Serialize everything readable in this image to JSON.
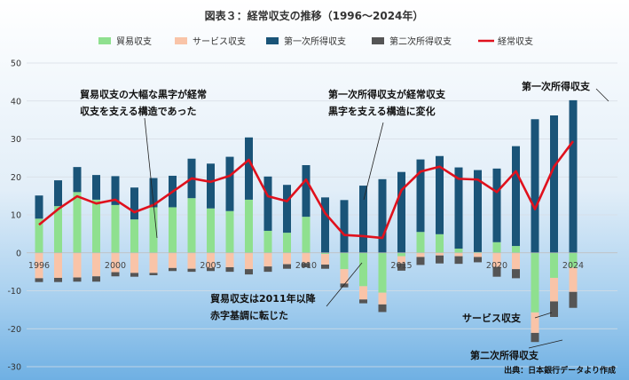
{
  "chart_data": {
    "type": "bar",
    "title": "図表３：経常収支の推移（1996～2024年）",
    "source": "出典：日本銀行データより作成",
    "x": [
      1996,
      1997,
      1998,
      1999,
      2000,
      2001,
      2002,
      2003,
      2004,
      2005,
      2006,
      2007,
      2008,
      2009,
      2010,
      2011,
      2012,
      2013,
      2014,
      2015,
      2016,
      2017,
      2018,
      2019,
      2020,
      2021,
      2022,
      2023,
      2024
    ],
    "x_tick_labels": [
      "1996",
      "2000",
      "2005",
      "2010",
      "2015",
      "2020",
      "2024"
    ],
    "y_ticks": [
      50,
      40,
      30,
      20,
      10,
      0,
      -10,
      -20,
      -30
    ],
    "ylim": [
      -30,
      50
    ],
    "colors": {
      "trade": "#8fe08f",
      "services": "#f9c4a8",
      "primary": "#1a5478",
      "secondary": "#555555",
      "current": "#e0111d"
    },
    "series": [
      {
        "name": "貿易収支",
        "key": "trade",
        "values": [
          9.0,
          12.3,
          16.0,
          14.0,
          12.6,
          8.8,
          12.0,
          12.0,
          14.4,
          11.7,
          11.0,
          14.0,
          5.8,
          5.3,
          9.5,
          -0.3,
          -4.3,
          -8.8,
          -10.5,
          -0.9,
          5.5,
          4.9,
          1.1,
          0.2,
          2.8,
          1.8,
          -15.7,
          -6.6,
          -3.9
        ]
      },
      {
        "name": "サービス収支",
        "key": "services",
        "values": [
          -6.7,
          -6.6,
          -6.5,
          -6.2,
          -5.1,
          -5.3,
          -5.3,
          -4.0,
          -4.2,
          -4.0,
          -3.8,
          -4.3,
          -3.6,
          -3.0,
          -2.7,
          -2.8,
          -3.8,
          -3.5,
          -3.1,
          -1.9,
          -1.1,
          -0.7,
          -0.9,
          -1.1,
          -3.7,
          -4.3,
          -5.4,
          -6.2,
          -6.4
        ]
      },
      {
        "name": "第一次所得収支",
        "key": "primary",
        "values": [
          6.1,
          6.8,
          6.6,
          6.5,
          7.6,
          8.4,
          7.7,
          8.3,
          10.4,
          11.8,
          14.3,
          16.4,
          14.3,
          12.6,
          13.6,
          14.6,
          13.9,
          17.7,
          19.4,
          21.3,
          19.1,
          20.6,
          21.4,
          21.6,
          19.4,
          26.3,
          35.2,
          36.2,
          40.2
        ]
      },
      {
        "name": "第二次所得収支",
        "key": "secondary",
        "values": [
          -1.0,
          -1.1,
          -1.1,
          -1.4,
          -1.1,
          -1.0,
          -0.6,
          -0.8,
          -0.8,
          -0.8,
          -1.2,
          -1.4,
          -1.4,
          -1.2,
          -1.1,
          -1.1,
          -1.0,
          -1.0,
          -2.0,
          -1.9,
          -2.1,
          -2.1,
          -2.0,
          -1.4,
          -2.6,
          -2.4,
          -2.4,
          -4.1,
          -4.2
        ]
      },
      {
        "name": "経常収支",
        "key": "current",
        "type": "line",
        "values": [
          7.4,
          11.5,
          14.9,
          13.0,
          14.0,
          10.7,
          12.6,
          16.1,
          19.6,
          18.7,
          20.3,
          24.5,
          14.9,
          13.6,
          19.3,
          10.4,
          4.7,
          4.4,
          3.9,
          16.5,
          21.4,
          22.7,
          19.5,
          19.3,
          16.0,
          21.5,
          11.5,
          22.7,
          29.4
        ]
      }
    ],
    "annotations": [
      {
        "lines": [
          "貿易収支の大幅な黒字が経常",
          "収支を支える構造であった"
        ]
      },
      {
        "lines": [
          "第一次所得収支が経常収支",
          "黒字を支える構造に変化"
        ]
      },
      {
        "lines": [
          "第一次所得収支"
        ]
      },
      {
        "lines": [
          "貿易収支は2011年以降",
          "赤字基調に転じた"
        ]
      },
      {
        "lines": [
          "サービス収支"
        ]
      },
      {
        "lines": [
          "第二次所得収支"
        ]
      }
    ]
  }
}
